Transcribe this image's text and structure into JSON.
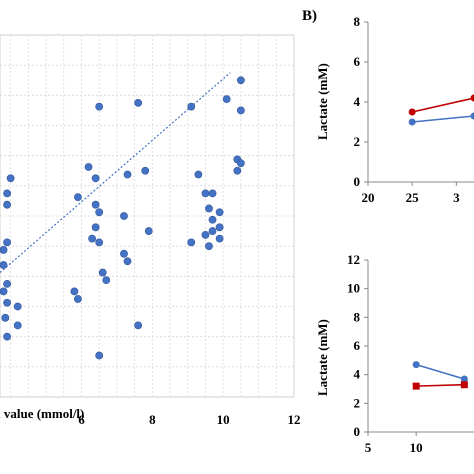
{
  "panel_label_b": "B)",
  "chart_data": [
    {
      "type": "scatter",
      "xlabel": "l value (mmol/l)",
      "ylabel": "",
      "xlim": [
        3.7,
        12
      ],
      "ylim": [
        -3.2,
        6.4
      ],
      "x_ticks": [
        "6",
        "8",
        "10",
        "12"
      ],
      "grid": true,
      "trendline": {
        "style": "dotted",
        "from": [
          3.7,
          0.1
        ],
        "to": [
          10.2,
          5.4
        ]
      },
      "series": [
        {
          "color": "#4472c4",
          "points": [
            {
              "x": 3.9,
              "y": 2.2
            },
            {
              "x": 4.0,
              "y": 2.6
            },
            {
              "x": 3.9,
              "y": 1.9
            },
            {
              "x": 3.9,
              "y": 0.9
            },
            {
              "x": 3.8,
              "y": 0.7
            },
            {
              "x": 3.8,
              "y": 0.3
            },
            {
              "x": 3.9,
              "y": -0.2
            },
            {
              "x": 3.8,
              "y": -0.4
            },
            {
              "x": 3.9,
              "y": -0.7
            },
            {
              "x": 4.2,
              "y": -0.8
            },
            {
              "x": 3.85,
              "y": -1.1
            },
            {
              "x": 4.2,
              "y": -1.3
            },
            {
              "x": 3.9,
              "y": -1.6
            },
            {
              "x": 6.5,
              "y": 4.5
            },
            {
              "x": 7.6,
              "y": 4.6
            },
            {
              "x": 6.2,
              "y": 2.9
            },
            {
              "x": 6.4,
              "y": 2.6
            },
            {
              "x": 7.3,
              "y": 2.7
            },
            {
              "x": 7.8,
              "y": 2.8
            },
            {
              "x": 5.9,
              "y": 2.1
            },
            {
              "x": 6.4,
              "y": 1.9
            },
            {
              "x": 6.5,
              "y": 1.7
            },
            {
              "x": 7.2,
              "y": 1.6
            },
            {
              "x": 6.4,
              "y": 1.3
            },
            {
              "x": 6.3,
              "y": 1.0
            },
            {
              "x": 7.9,
              "y": 1.2
            },
            {
              "x": 6.5,
              "y": 0.9
            },
            {
              "x": 7.2,
              "y": 0.6
            },
            {
              "x": 7.3,
              "y": 0.4
            },
            {
              "x": 6.6,
              "y": 0.1
            },
            {
              "x": 6.7,
              "y": -0.1
            },
            {
              "x": 5.8,
              "y": -0.4
            },
            {
              "x": 5.9,
              "y": -0.6
            },
            {
              "x": 7.6,
              "y": -1.3
            },
            {
              "x": 6.5,
              "y": -2.1
            },
            {
              "x": 9.1,
              "y": 4.5
            },
            {
              "x": 10.1,
              "y": 4.7
            },
            {
              "x": 10.5,
              "y": 5.2
            },
            {
              "x": 10.5,
              "y": 4.4
            },
            {
              "x": 10.4,
              "y": 3.1
            },
            {
              "x": 10.5,
              "y": 3.0
            },
            {
              "x": 10.4,
              "y": 2.8
            },
            {
              "x": 9.3,
              "y": 2.7
            },
            {
              "x": 9.5,
              "y": 2.2
            },
            {
              "x": 9.7,
              "y": 2.2
            },
            {
              "x": 9.6,
              "y": 1.8
            },
            {
              "x": 9.7,
              "y": 1.5
            },
            {
              "x": 9.9,
              "y": 1.7
            },
            {
              "x": 9.9,
              "y": 1.3
            },
            {
              "x": 9.7,
              "y": 1.2
            },
            {
              "x": 9.5,
              "y": 1.1
            },
            {
              "x": 9.9,
              "y": 1.0
            },
            {
              "x": 9.1,
              "y": 0.9
            },
            {
              "x": 9.6,
              "y": 0.8
            }
          ]
        }
      ]
    },
    {
      "type": "line",
      "ylabel": "Lactate (mM)",
      "xlim": [
        20,
        32
      ],
      "ylim": [
        0,
        8
      ],
      "x_ticks": [
        "20",
        "25",
        "3"
      ],
      "y_ticks": [
        "0",
        "2",
        "4",
        "6",
        "8"
      ],
      "grid": false,
      "series": [
        {
          "color": "#c00000",
          "marker": "circle",
          "points": [
            {
              "x": 25,
              "y": 3.5
            },
            {
              "x": 32,
              "y": 4.2
            }
          ]
        },
        {
          "color": "#4472c4",
          "marker": "circle",
          "points": [
            {
              "x": 25,
              "y": 3.0
            },
            {
              "x": 32,
              "y": 3.3
            }
          ]
        }
      ]
    },
    {
      "type": "line",
      "ylabel": "Lactate (mM)",
      "xlim": [
        5,
        16
      ],
      "ylim": [
        0,
        12
      ],
      "x_ticks": [
        "5",
        "10"
      ],
      "y_ticks": [
        "0",
        "2",
        "4",
        "6",
        "8",
        "10",
        "12"
      ],
      "grid": false,
      "series": [
        {
          "color": "#4472c4",
          "marker": "circle",
          "points": [
            {
              "x": 10,
              "y": 4.7
            },
            {
              "x": 15,
              "y": 3.7
            }
          ]
        },
        {
          "color": "#c00000",
          "marker": "square",
          "points": [
            {
              "x": 10,
              "y": 3.2
            },
            {
              "x": 15,
              "y": 3.3
            }
          ]
        }
      ]
    }
  ]
}
